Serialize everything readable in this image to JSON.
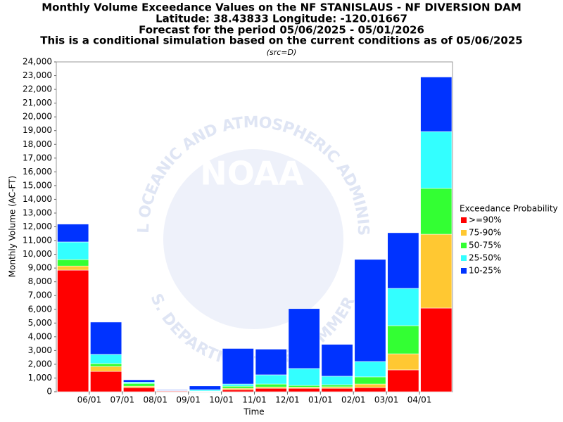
{
  "chart_data": {
    "type": "stacked-bar",
    "title": "Monthly Volume Exceedance Values on the NF STANISLAUS - NF DIVERSION DAM",
    "subtitles": [
      "Latitude: 38.43833 Longitude: -120.01667",
      "Forecast for the period 05/06/2025 - 05/01/2026",
      "This is a conditional simulation based on the current conditions as of 05/06/2025"
    ],
    "source": "(src=D)",
    "xlabel": "Time",
    "ylabel": "Monthly Volume (AC-FT)",
    "legend_title": "Exceedance Probability",
    "categories": [
      "06/01",
      "07/01",
      "08/01",
      "09/01",
      "10/01",
      "11/01",
      "12/01",
      "01/01",
      "02/01",
      "03/01",
      "04/01",
      null
    ],
    "series": [
      {
        "name": ">=90%",
        "color": "#ff0000",
        "values": [
          8850,
          1480,
          300,
          50,
          20,
          150,
          250,
          250,
          250,
          300,
          1590,
          6090
        ]
      },
      {
        "name": "75-90%",
        "color": "#ffc832",
        "values": [
          300,
          360,
          100,
          10,
          10,
          100,
          100,
          90,
          110,
          260,
          1170,
          5370
        ]
      },
      {
        "name": "50-75%",
        "color": "#33ff33",
        "values": [
          470,
          210,
          200,
          20,
          20,
          150,
          210,
          120,
          150,
          520,
          2050,
          3340
        ]
      },
      {
        "name": "25-50%",
        "color": "#33ffff",
        "values": [
          1280,
          670,
          100,
          20,
          100,
          160,
          670,
          1230,
          620,
          1120,
          2710,
          4130
        ]
      },
      {
        "name": "10-25%",
        "color": "#0033ff",
        "values": [
          1300,
          2350,
          170,
          50,
          270,
          2590,
          1870,
          4360,
          2320,
          7430,
          4050,
          3970
        ]
      }
    ],
    "ylim": [
      0,
      24000
    ],
    "yticks": [
      0,
      {
        "value": 1000,
        "label": "1,000"
      },
      {
        "value": 2000,
        "label": "2,000"
      },
      {
        "value": 3000,
        "label": "3,000"
      },
      {
        "value": 4000,
        "label": "4,000"
      },
      {
        "value": 5000,
        "label": "5,000"
      },
      {
        "value": 6000,
        "label": "6,000"
      },
      {
        "value": 7000,
        "label": "7,000"
      },
      {
        "value": 8000,
        "label": "8,000"
      },
      {
        "value": 9000,
        "label": "9,000"
      },
      {
        "value": 10000,
        "label": "10,000"
      },
      {
        "value": 11000,
        "label": "11,000"
      },
      {
        "value": 12000,
        "label": "12,000"
      },
      {
        "value": 13000,
        "label": "13,000"
      },
      {
        "value": 14000,
        "label": "14,000"
      },
      {
        "value": 15000,
        "label": "15,000"
      },
      {
        "value": 16000,
        "label": "16,000"
      },
      {
        "value": 17000,
        "label": "17,000"
      },
      {
        "value": 18000,
        "label": "18,000"
      },
      {
        "value": 19000,
        "label": "19,000"
      },
      {
        "value": 20000,
        "label": "20,000"
      },
      {
        "value": 21000,
        "label": "21,000"
      },
      {
        "value": 22000,
        "label": "22,000"
      },
      {
        "value": 23000,
        "label": "23,000"
      },
      {
        "value": 24000,
        "label": "24,000"
      }
    ],
    "grid": false,
    "legend": "right",
    "watermark": {
      "top": "NATIONAL OCEANIC AND ATMOSPHERIC ADMINISTRATION",
      "bottom": "U.S. DEPARTMENT OF COMMERCE",
      "logo": "NOAA"
    }
  }
}
